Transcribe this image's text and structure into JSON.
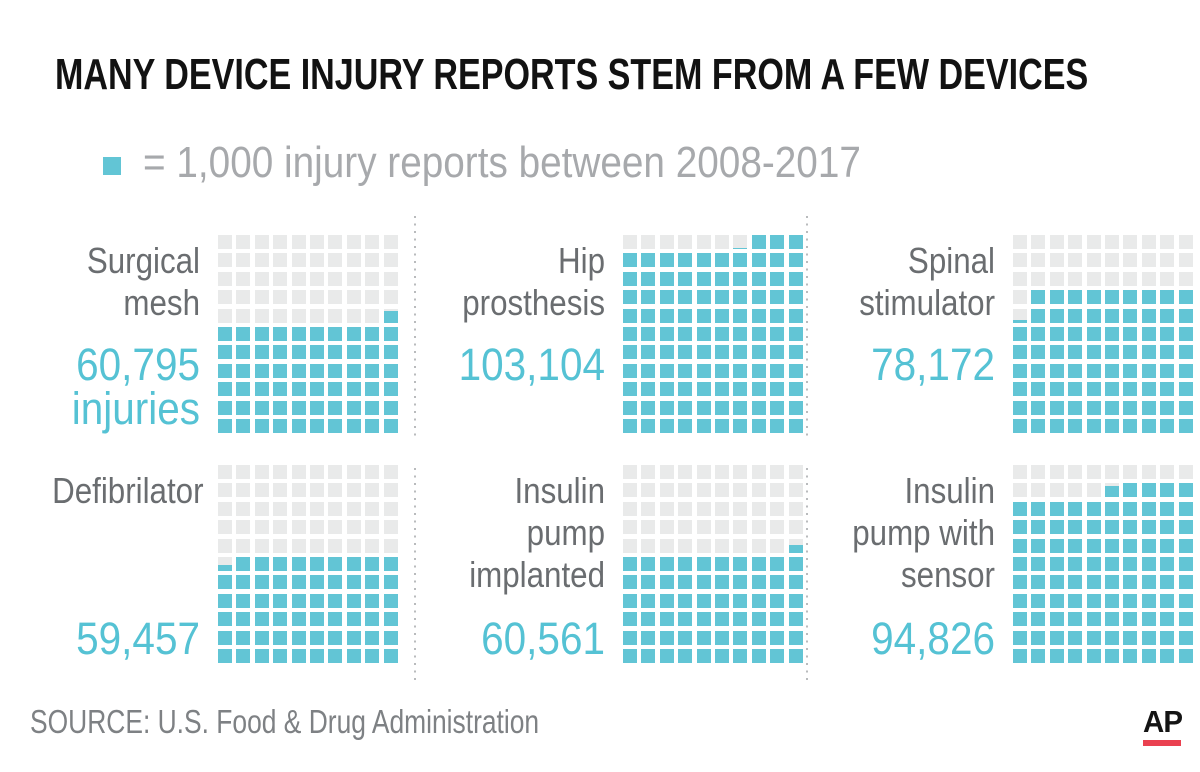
{
  "title": "MANY DEVICE INJURY REPORTS STEM FROM A FEW DEVICES",
  "legend": {
    "swatch_color": "#62C5D5",
    "text": "= 1,000 injury reports between 2008-2017"
  },
  "source": "SOURCE: U.S. Food & Drug Administration",
  "logo": {
    "text": "AP"
  },
  "colors": {
    "filled": "#62C5D5",
    "empty": "#E9EAEA",
    "value_text": "#55C2D4",
    "label_text": "#6A6D70",
    "legend_text": "#A7A9AC",
    "source_text": "#7E8184",
    "title_text": "#121212",
    "separator_dots": "#B9BBBD",
    "ap_red": "#EA4150"
  },
  "chart_data": {
    "type": "waffle",
    "title": "MANY DEVICE INJURY REPORTS STEM FROM A FEW DEVICES",
    "legend": "1 square = 1,000 injury reports between 2008-2017",
    "unit_per_square": 1000,
    "period": "2008-2017",
    "grid_columns": 10,
    "grid_rows": 11,
    "layout": "2 rows x 3 columns of waffle grids, labels left of each grid, dotted separators between columns",
    "devices": [
      {
        "id": "surgical-mesh",
        "label_lines": [
          "Surgical",
          "mesh"
        ],
        "value": 60795,
        "value_label": "60,795",
        "value_suffix": "injuries",
        "partial": 0.795,
        "grid": [
          "..........",
          "..........",
          "..........",
          "..........",
          ".........P",
          "FFFFFFFFFF",
          "FFFFFFFFFF",
          "FFFFFFFFFF",
          "FFFFFFFFFF",
          "FFFFFFFFFF",
          "FFFFFFFFFF"
        ]
      },
      {
        "id": "hip-prosthesis",
        "label_lines": [
          "Hip",
          "prosthesis"
        ],
        "value": 103104,
        "value_label": "103,104",
        "value_suffix": "",
        "partial": 0.104,
        "grid": [
          "......PFFF",
          "FFFFFFFFFF",
          "FFFFFFFFFF",
          "FFFFFFFFFF",
          "FFFFFFFFFF",
          "FFFFFFFFFF",
          "FFFFFFFFFF",
          "FFFFFFFFFF",
          "FFFFFFFFFF",
          "FFFFFFFFFF",
          "FFFFFFFFFF"
        ]
      },
      {
        "id": "spinal-stimulator",
        "label_lines": [
          "Spinal",
          "stimulator"
        ],
        "value": 78172,
        "value_label": "78,172",
        "value_suffix": "",
        "partial": 0.172,
        "grid": [
          "..........",
          "..........",
          "..........",
          ".FFFFFFFFF",
          "PFFFFFFFFF",
          "FFFFFFFFFF",
          "FFFFFFFFFF",
          "FFFFFFFFFF",
          "FFFFFFFFFF",
          "FFFFFFFFFF",
          "FFFFFFFFFF"
        ]
      },
      {
        "id": "defibrilator",
        "label_lines": [
          "Defibrilator"
        ],
        "value": 59457,
        "value_label": "59,457",
        "value_suffix": "",
        "partial": 0.457,
        "grid": [
          "..........",
          "..........",
          "..........",
          "..........",
          "..........",
          "PFFFFFFFFF",
          "FFFFFFFFFF",
          "FFFFFFFFFF",
          "FFFFFFFFFF",
          "FFFFFFFFFF",
          "FFFFFFFFFF"
        ]
      },
      {
        "id": "insulin-pump-implanted",
        "label_lines": [
          "Insulin",
          "pump",
          "implanted"
        ],
        "value": 60561,
        "value_label": "60,561",
        "value_suffix": "",
        "partial": 0.561,
        "grid": [
          "..........",
          "..........",
          "..........",
          "..........",
          ".........P",
          "FFFFFFFFFF",
          "FFFFFFFFFF",
          "FFFFFFFFFF",
          "FFFFFFFFFF",
          "FFFFFFFFFF",
          "FFFFFFFFFF"
        ]
      },
      {
        "id": "insulin-pump-with-sensor",
        "label_lines": [
          "Insulin",
          "pump with",
          "sensor"
        ],
        "value": 94826,
        "value_label": "94,826",
        "value_suffix": "",
        "partial": 0.826,
        "grid": [
          "..........",
          ".....PFFFF",
          "FFFFFFFFFF",
          "FFFFFFFFFF",
          "FFFFFFFFFF",
          "FFFFFFFFFF",
          "FFFFFFFFFF",
          "FFFFFFFFFF",
          "FFFFFFFFFF",
          "FFFFFFFFFF",
          "FFFFFFFFFF"
        ]
      }
    ]
  }
}
